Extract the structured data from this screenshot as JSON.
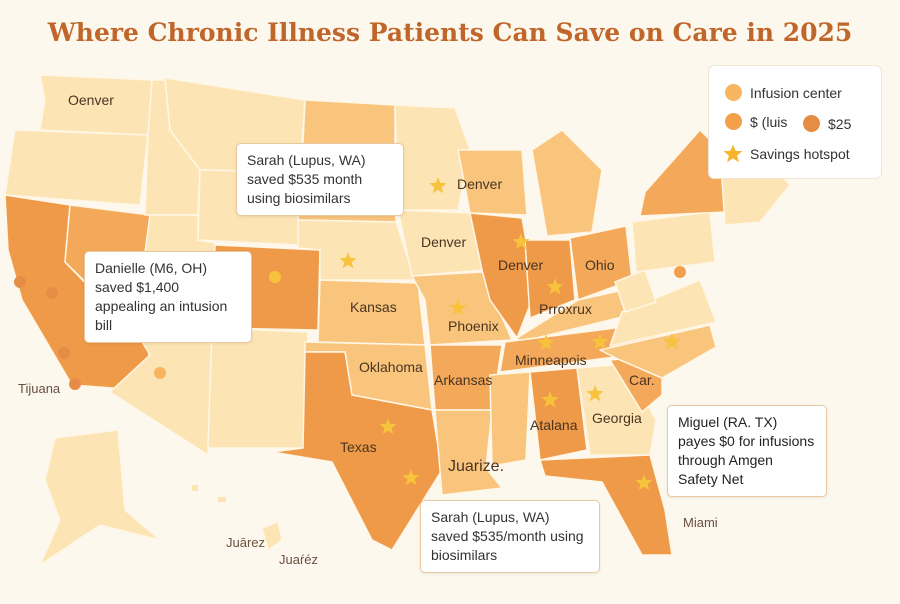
{
  "title": "Where Chronic Illness Patients Can Save on Care in 2025",
  "colors": {
    "title": "#c0662a",
    "light": "#fde4b4",
    "medium": "#f9c57d",
    "dark": "#f3a85a",
    "darkest": "#ef9a48",
    "star": "#f7c23c",
    "dot_infusion": "#f8b560",
    "dot_mid": "#f2a04c",
    "dot_dark": "#e68d45"
  },
  "legend": {
    "items": [
      {
        "icon": "infusion-dot",
        "label": "Infusion center"
      },
      {
        "icon": "mid-dot",
        "label": "$ (luis"
      },
      {
        "icon": "dark-dot",
        "label": "$25"
      },
      {
        "icon": "star-icon",
        "label": "Savings hotspot"
      }
    ]
  },
  "labels": {
    "oenver": "Oenver",
    "denver_wi": "Denver",
    "denver_ia": "Denver",
    "denver_il": "Denver",
    "ohio": "Ohio",
    "kansas": "Kansas",
    "phoenix": "Phoenix",
    "prroxrux": "Prroxrux",
    "oklahoma": "Oklahoma",
    "arkansas": "Arkansas",
    "minneapois": "Minneapois",
    "car": "Car.",
    "texas": "Texas",
    "atalana": "Atalana",
    "georgia": "Georgia",
    "juarize": "Juarize.",
    "miami": "Miami",
    "tijuana": "Tijuana",
    "juarez1": "Juārez",
    "juarez2": "Juaŕéz"
  },
  "callouts": [
    {
      "text": "Sarah (Lupus, WA) saved $535 month using biosimilars"
    },
    {
      "text": "Danielle (M6, OH) saved $1,400 appealing an intusion bill"
    },
    {
      "text": "Miguel (RA. TX) payes $0 for infusions through Amgen Safety Net"
    },
    {
      "text": "Sarah (Lupus, WA) saved $535/month using biosimilars"
    }
  ]
}
